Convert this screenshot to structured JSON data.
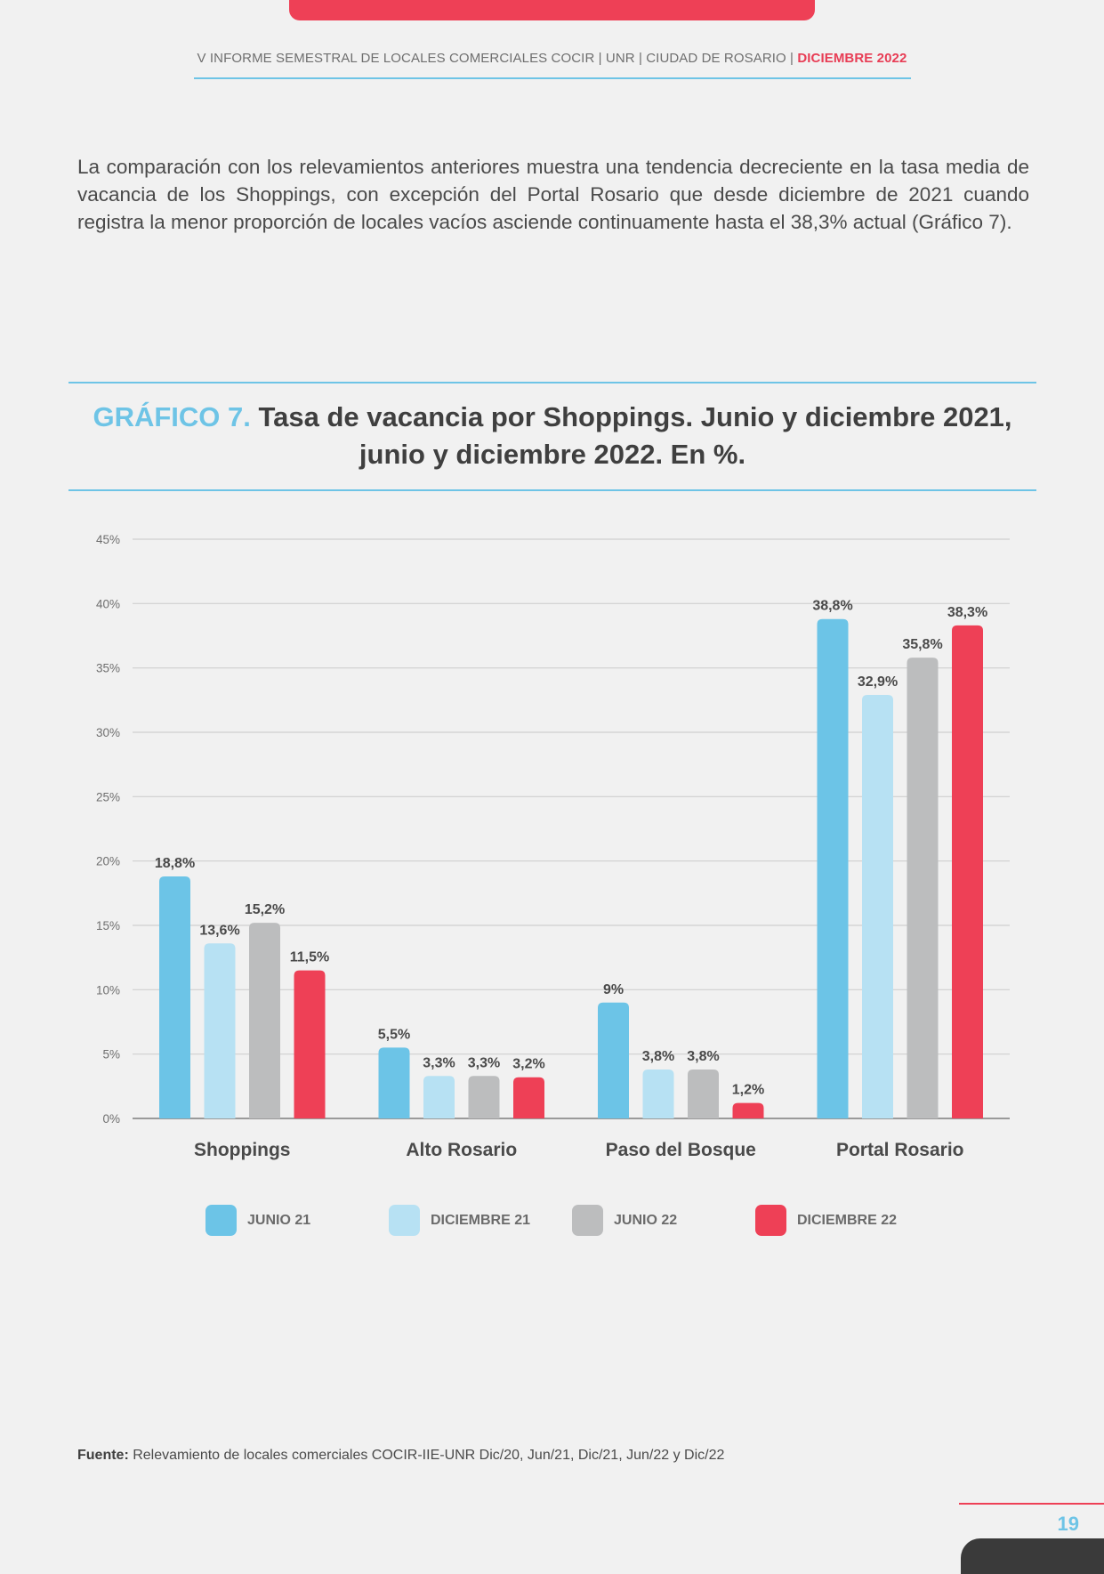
{
  "header": {
    "text": "V INFORME SEMESTRAL DE LOCALES COMERCIALES COCIR | UNR | CIUDAD DE ROSARIO | ",
    "accent": "DICIEMBRE 2022"
  },
  "intro": "La comparación con los relevamientos anteriores muestra una tendencia decreciente en la tasa media de vacancia de los Shoppings, con excepción del Portal Rosario que desde diciembre de 2021 cuando registra la menor proporción de locales vacíos asciende continuamente hasta el 38,3% actual (Gráfico 7).",
  "figure": {
    "number": "GRÁFICO 7.",
    "title_line1": "Tasa de vacancia por Shoppings. Junio y diciembre 2021,",
    "title_line2": "junio y diciembre 2022. En %."
  },
  "chart_data": {
    "type": "bar",
    "title": "Tasa de vacancia por Shoppings. Junio y diciembre 2021, junio y diciembre 2022. En %.",
    "categories": [
      "Shoppings",
      "Alto Rosario",
      "Paso del Bosque",
      "Portal Rosario"
    ],
    "series": [
      {
        "name": "JUNIO 21",
        "color": "#6cc4e7",
        "values": [
          18.8,
          5.5,
          9,
          38.8
        ],
        "labels": [
          "18,8%",
          "5,5%",
          "9%",
          "38,8%"
        ]
      },
      {
        "name": "DICIEMBRE 21",
        "color": "#b7e1f3",
        "values": [
          13.6,
          3.3,
          3.8,
          32.9
        ],
        "labels": [
          "13,6%",
          "3,3%",
          "3,8%",
          "32,9%"
        ]
      },
      {
        "name": "JUNIO 22",
        "color": "#bcbdbe",
        "values": [
          15.2,
          3.3,
          3.8,
          35.8
        ],
        "labels": [
          "15,2%",
          "3,3%",
          "3,8%",
          "35,8%"
        ]
      },
      {
        "name": "DICIEMBRE 22",
        "color": "#ee4056",
        "values": [
          11.5,
          3.2,
          1.2,
          38.3
        ],
        "labels": [
          "11,5%",
          "3,2%",
          "1,2%",
          "38,3%"
        ]
      }
    ],
    "ylim": [
      0,
      45
    ],
    "yticks": [
      0,
      5,
      10,
      15,
      20,
      25,
      30,
      35,
      40,
      45
    ],
    "ytick_labels": [
      "0%",
      "5%",
      "10%",
      "15%",
      "20%",
      "25%",
      "30%",
      "35%",
      "40%",
      "45%"
    ],
    "grid": true,
    "legend_position": "bottom"
  },
  "source": {
    "label": "Fuente:",
    "text": " Relevamiento de locales comerciales COCIR-IIE-UNR Dic/20, Jun/21, Dic/21, Jun/22 y Dic/22"
  },
  "page_number": "19"
}
